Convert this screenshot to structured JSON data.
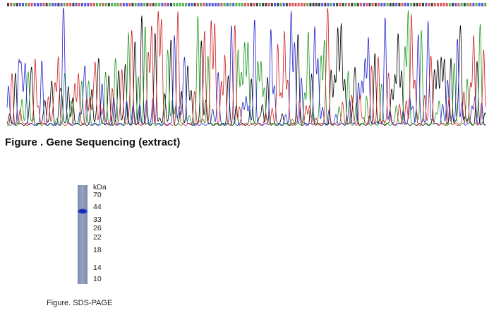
{
  "figures": [
    {
      "caption": "Figure . Gene Sequencing (extract)"
    },
    {
      "caption": "Figure. SDS-PAGE",
      "unit": "kDa",
      "markers": [
        "70",
        "44",
        "33",
        "26",
        "22",
        "18",
        "14",
        "10"
      ]
    }
  ]
}
